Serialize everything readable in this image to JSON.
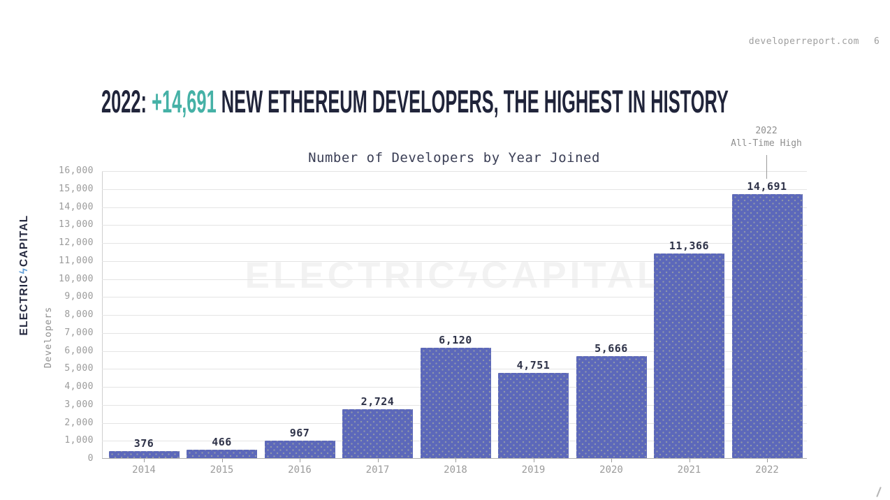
{
  "page": {
    "credit": "developerreport.com",
    "credit_partial": "6",
    "title": {
      "prefix": "2022: ",
      "highlight": "+14,691",
      "suffix": " NEW ETHEREUM DEVELOPERS, THE HIGHEST IN HISTORY"
    },
    "logo": {
      "left": "ELECTRIC",
      "bolt": "ϟ",
      "right": "CAPITAL"
    },
    "watermark": {
      "left": "ELECTRIC",
      "bolt": "ϟ",
      "right": "CAPITAL"
    },
    "colors": {
      "accent_teal": "#45b1a6",
      "navy": "#20243a",
      "bar_indigo": "#5c68ba",
      "label_gray": "#9b9b9b"
    }
  },
  "chart_data": {
    "type": "bar",
    "title": "Number of Developers by Year Joined",
    "xlabel": "",
    "ylabel": "Developers",
    "categories": [
      "2014",
      "2015",
      "2016",
      "2017",
      "2018",
      "2019",
      "2020",
      "2021",
      "2022"
    ],
    "values": [
      376,
      466,
      967,
      2724,
      6120,
      4751,
      5666,
      11366,
      14691
    ],
    "value_labels": [
      "376",
      "466",
      "967",
      "2,724",
      "6,120",
      "4,751",
      "5,666",
      "11,366",
      "14,691"
    ],
    "ylim": [
      0,
      16000
    ],
    "ytick_step": 1000,
    "ytick_labels": [
      "0",
      "1,000",
      "2,000",
      "3,000",
      "4,000",
      "5,000",
      "6,000",
      "7,000",
      "8,000",
      "9,000",
      "10,000",
      "11,000",
      "12,000",
      "13,000",
      "14,000",
      "15,000",
      "16,000"
    ],
    "grid": true,
    "legend": false,
    "bar_color": "#5c68ba",
    "annotation": {
      "line1": "2022",
      "line2": "All-Time High",
      "target": "2022"
    }
  }
}
